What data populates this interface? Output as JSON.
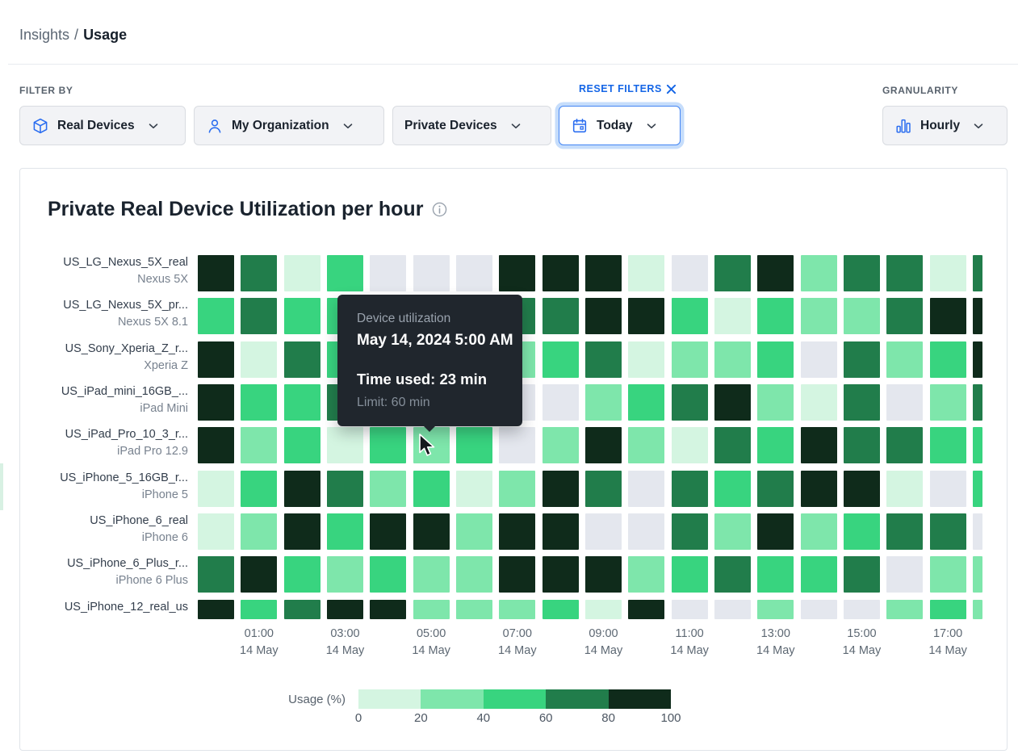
{
  "breadcrumb": {
    "parent": "Insights",
    "separator": "/",
    "current": "Usage"
  },
  "filters": {
    "label": "FILTER BY",
    "reset_label": "RESET FILTERS",
    "granularity_label": "GRANULARITY",
    "buttons": [
      {
        "label": "Real Devices",
        "icon": "cube-icon"
      },
      {
        "label": "My Organization",
        "icon": "user-icon"
      },
      {
        "label": "Private Devices",
        "icon": null
      },
      {
        "label": "Today",
        "icon": "calendar-icon",
        "focused": true
      }
    ],
    "granularity_value": {
      "label": "Hourly",
      "icon": "bar-chart-icon"
    }
  },
  "accent_colors": {
    "blue": "#1465e6",
    "icon_blue": "#2a6df0",
    "focus_ring": "#c6ddfb"
  },
  "chart_data": {
    "type": "heatmap",
    "title": "Private Real Device Utilization per hour",
    "x_axis": {
      "tick_labels": [
        {
          "time": "01:00",
          "date": "14 May"
        },
        {
          "time": "03:00",
          "date": "14 May"
        },
        {
          "time": "05:00",
          "date": "14 May"
        },
        {
          "time": "07:00",
          "date": "14 May"
        },
        {
          "time": "09:00",
          "date": "14 May"
        },
        {
          "time": "11:00",
          "date": "14 May"
        },
        {
          "time": "13:00",
          "date": "14 May"
        },
        {
          "time": "15:00",
          "date": "14 May"
        },
        {
          "time": "17:00",
          "date": "14 May"
        }
      ]
    },
    "cell_buckets": {
      "g": "0% no usage",
      "vl": "1-20%",
      "l": "21-40%",
      "b": "41-60%",
      "m": "61-80%",
      "d": "81-100%"
    },
    "colors": {
      "g": "#e4e7ee",
      "vl": "#d4f5e1",
      "l": "#7ee6ab",
      "b": "#38d47f",
      "m": "#217d4b",
      "d": "#0f2b1b"
    },
    "rows": [
      {
        "device": "US_LG_Nexus_5X_real",
        "model": "Nexus 5X",
        "cells": [
          "d",
          "m",
          "vl",
          "b",
          "g",
          "g",
          "g",
          "d",
          "d",
          "d",
          "vl",
          "g",
          "m",
          "d",
          "l",
          "m",
          "m",
          "vl",
          "m"
        ]
      },
      {
        "device": "US_LG_Nexus_5X_pr...",
        "model": "Nexus 5X 8.1",
        "cells": [
          "b",
          "m",
          "b",
          "b",
          "l",
          "b",
          "m",
          "m",
          "m",
          "d",
          "d",
          "b",
          "vl",
          "b",
          "l",
          "l",
          "m",
          "d",
          "d"
        ]
      },
      {
        "device": "US_Sony_Xperia_Z_r...",
        "model": "Xperia Z",
        "cells": [
          "d",
          "vl",
          "m",
          "b",
          "b",
          "g",
          "l",
          "l",
          "b",
          "m",
          "vl",
          "l",
          "l",
          "b",
          "g",
          "m",
          "l",
          "b",
          "d"
        ]
      },
      {
        "device": "US_iPad_mini_16GB_...",
        "model": "iPad Mini",
        "cells": [
          "d",
          "b",
          "b",
          "m",
          "m",
          "l",
          "g",
          "g",
          "g",
          "l",
          "b",
          "m",
          "d",
          "l",
          "vl",
          "m",
          "g",
          "l",
          "m"
        ]
      },
      {
        "device": "US_iPad_Pro_10_3_r...",
        "model": "iPad Pro 12.9",
        "cells": [
          "d",
          "l",
          "b",
          "vl",
          "b",
          "l",
          "b",
          "g",
          "l",
          "d",
          "l",
          "vl",
          "m",
          "b",
          "d",
          "m",
          "m",
          "b",
          "b"
        ]
      },
      {
        "device": "US_iPhone_5_16GB_r...",
        "model": "iPhone 5",
        "cells": [
          "vl",
          "b",
          "d",
          "m",
          "l",
          "b",
          "vl",
          "l",
          "d",
          "m",
          "g",
          "m",
          "b",
          "m",
          "d",
          "d",
          "vl",
          "g",
          "b"
        ]
      },
      {
        "device": "US_iPhone_6_real",
        "model": "iPhone 6",
        "cells": [
          "vl",
          "l",
          "d",
          "b",
          "d",
          "d",
          "l",
          "d",
          "d",
          "g",
          "g",
          "m",
          "l",
          "d",
          "l",
          "b",
          "m",
          "m",
          "g"
        ]
      },
      {
        "device": "US_iPhone_6_Plus_r...",
        "model": "iPhone 6 Plus",
        "cells": [
          "m",
          "d",
          "b",
          "l",
          "b",
          "l",
          "l",
          "d",
          "d",
          "d",
          "l",
          "b",
          "m",
          "b",
          "b",
          "m",
          "g",
          "l",
          "l"
        ]
      },
      {
        "device": "US_iPhone_12_real_us",
        "model": "",
        "cells": [
          "d",
          "b",
          "m",
          "d",
          "d",
          "l",
          "l",
          "l",
          "b",
          "vl",
          "d",
          "g",
          "g",
          "l",
          "g",
          "g",
          "l",
          "b",
          "l"
        ]
      }
    ],
    "legend": {
      "label": "Usage (%)",
      "ticks": [
        "0",
        "20",
        "40",
        "60",
        "80",
        "100"
      ],
      "bucket_colors": [
        "#d4f5e1",
        "#7ee6ab",
        "#38d47f",
        "#217d4b",
        "#0f2b1b"
      ]
    },
    "hovered_cell": {
      "row": "US_iPad_Pro_10_3_r...",
      "column_time": "05:00"
    }
  },
  "tooltip": {
    "title": "Device utilization",
    "datetime": "May 14, 2024 5:00 AM",
    "time_used": "Time used: 23 min",
    "limit": "Limit: 60 min"
  }
}
